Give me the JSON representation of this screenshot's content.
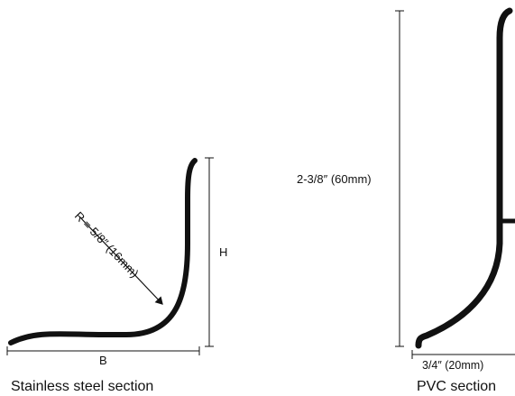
{
  "steel": {
    "caption": "Stainless steel section",
    "radius_label": "R = 5/8″ (16mm)",
    "height_label": "H",
    "base_label": "B"
  },
  "pvc": {
    "caption": "PVC section",
    "height_label": "2-3/8″ (60mm)",
    "width_label": "3/4″ (20mm)"
  },
  "colors": {
    "ink": "#111111",
    "background": "#ffffff"
  }
}
